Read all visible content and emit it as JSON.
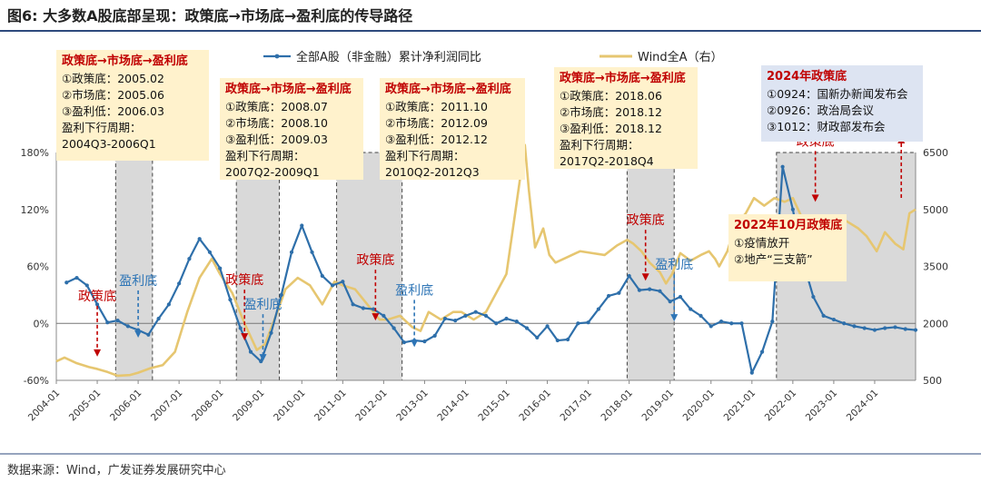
{
  "figure_title": "图6:  大多数A股底部呈现：政策底→市场底→盈利底的传导路径",
  "source": "数据来源：Wind，广发证券发展研究中心",
  "colors": {
    "earnings_line": "#2E6FAA",
    "index_line": "#E6C670",
    "policy": "#C00000",
    "earnings_marker": "#2E75B6",
    "shade": "#D9D9D9",
    "box": "#FFF2CC",
    "box_2024": "#DDE4F2"
  },
  "chart_data": {
    "type": "line",
    "legend": [
      "全部A股（非金融）累计净利润同比",
      "Wind全A（右）"
    ],
    "x_ticks": [
      "2004-01",
      "2005-01",
      "2006-01",
      "2007-01",
      "2008-01",
      "2009-01",
      "2010-01",
      "2011-01",
      "2012-01",
      "2013-01",
      "2014-01",
      "2015-01",
      "2016-01",
      "2017-01",
      "2018-01",
      "2019-01",
      "2020-01",
      "2021-01",
      "2022-01",
      "2023-01",
      "2024-01"
    ],
    "y_left": {
      "ticks": [
        "-60%",
        "0%",
        "60%",
        "120%",
        "180%"
      ],
      "values": [
        -60,
        0,
        60,
        120,
        180
      ],
      "range": [
        -60,
        180
      ]
    },
    "y_right": {
      "ticks": [
        "500",
        "2000",
        "3500",
        "5000",
        "6500"
      ],
      "values": [
        500,
        2000,
        3500,
        5000,
        6500
      ],
      "range": [
        500,
        6500
      ]
    },
    "series": [
      {
        "name": "全部A股（非金融）累计净利润同比",
        "axis": "left",
        "data": [
          [
            2004.25,
            43
          ],
          [
            2004.5,
            48
          ],
          [
            2004.75,
            40
          ],
          [
            2005.0,
            20
          ],
          [
            2005.25,
            1
          ],
          [
            2005.5,
            3
          ],
          [
            2005.75,
            -3
          ],
          [
            2006.0,
            -7
          ],
          [
            2006.25,
            -12
          ],
          [
            2006.5,
            5
          ],
          [
            2006.75,
            20
          ],
          [
            2007.0,
            42
          ],
          [
            2007.25,
            68
          ],
          [
            2007.5,
            89
          ],
          [
            2007.75,
            75
          ],
          [
            2008.0,
            58
          ],
          [
            2008.25,
            25
          ],
          [
            2008.5,
            -5
          ],
          [
            2008.75,
            -30
          ],
          [
            2009.0,
            -40
          ],
          [
            2009.25,
            -10
          ],
          [
            2009.5,
            30
          ],
          [
            2009.75,
            75
          ],
          [
            2010.0,
            103
          ],
          [
            2010.25,
            75
          ],
          [
            2010.5,
            50
          ],
          [
            2010.75,
            40
          ],
          [
            2011.0,
            44
          ],
          [
            2011.25,
            20
          ],
          [
            2011.5,
            16
          ],
          [
            2011.75,
            15
          ],
          [
            2012.0,
            8
          ],
          [
            2012.25,
            -5
          ],
          [
            2012.5,
            -20
          ],
          [
            2012.75,
            -18
          ],
          [
            2013.0,
            -19
          ],
          [
            2013.25,
            -13
          ],
          [
            2013.5,
            5
          ],
          [
            2013.75,
            3
          ],
          [
            2014.0,
            8
          ],
          [
            2014.25,
            12
          ],
          [
            2014.5,
            8
          ],
          [
            2014.75,
            0
          ],
          [
            2015.0,
            5
          ],
          [
            2015.25,
            2
          ],
          [
            2015.5,
            -5
          ],
          [
            2015.75,
            -15
          ],
          [
            2016.0,
            -3
          ],
          [
            2016.25,
            -18
          ],
          [
            2016.5,
            -17
          ],
          [
            2016.75,
            0
          ],
          [
            2017.0,
            1
          ],
          [
            2017.25,
            15
          ],
          [
            2017.5,
            29
          ],
          [
            2017.75,
            32
          ],
          [
            2018.0,
            50
          ],
          [
            2018.25,
            35
          ],
          [
            2018.5,
            36
          ],
          [
            2018.75,
            34
          ],
          [
            2019.0,
            23
          ],
          [
            2019.25,
            28
          ],
          [
            2019.5,
            15
          ],
          [
            2019.75,
            8
          ],
          [
            2020.0,
            -3
          ],
          [
            2020.25,
            2
          ],
          [
            2020.5,
            0
          ],
          [
            2020.75,
            0
          ],
          [
            2021.0,
            -52
          ],
          [
            2021.25,
            -30
          ],
          [
            2021.5,
            2
          ],
          [
            2021.75,
            165
          ],
          [
            2022.0,
            120
          ],
          [
            2022.25,
            65
          ],
          [
            2022.5,
            28
          ],
          [
            2022.75,
            8
          ],
          [
            2023.0,
            4
          ],
          [
            2023.25,
            0
          ],
          [
            2023.5,
            -3
          ],
          [
            2023.75,
            -5
          ],
          [
            2024.0,
            -7
          ],
          [
            2024.25,
            -5
          ],
          [
            2024.5,
            -4
          ],
          [
            2024.75,
            -6
          ],
          [
            2025.0,
            -7
          ]
        ]
      },
      {
        "name": "Wind全A（右）",
        "axis": "right",
        "data": [
          [
            2004.0,
            1000
          ],
          [
            2004.2,
            1100
          ],
          [
            2004.5,
            950
          ],
          [
            2004.8,
            850
          ],
          [
            2005.0,
            800
          ],
          [
            2005.25,
            720
          ],
          [
            2005.5,
            620
          ],
          [
            2005.8,
            640
          ],
          [
            2006.0,
            700
          ],
          [
            2006.3,
            820
          ],
          [
            2006.6,
            900
          ],
          [
            2006.9,
            1250
          ],
          [
            2007.2,
            2300
          ],
          [
            2007.5,
            3200
          ],
          [
            2007.8,
            3700
          ],
          [
            2008.0,
            3300
          ],
          [
            2008.3,
            2800
          ],
          [
            2008.6,
            2000
          ],
          [
            2008.9,
            1300
          ],
          [
            2009.1,
            1450
          ],
          [
            2009.4,
            2300
          ],
          [
            2009.6,
            2900
          ],
          [
            2009.9,
            3200
          ],
          [
            2010.2,
            3000
          ],
          [
            2010.5,
            2500
          ],
          [
            2010.8,
            3100
          ],
          [
            2011.0,
            3000
          ],
          [
            2011.3,
            2900
          ],
          [
            2011.6,
            2500
          ],
          [
            2011.9,
            2100
          ],
          [
            2012.1,
            2100
          ],
          [
            2012.4,
            2200
          ],
          [
            2012.7,
            1900
          ],
          [
            2012.9,
            1800
          ],
          [
            2013.1,
            2300
          ],
          [
            2013.4,
            2100
          ],
          [
            2013.7,
            2300
          ],
          [
            2013.9,
            2300
          ],
          [
            2014.2,
            2100
          ],
          [
            2014.5,
            2300
          ],
          [
            2014.8,
            2900
          ],
          [
            2015.0,
            3300
          ],
          [
            2015.2,
            4800
          ],
          [
            2015.45,
            6700
          ],
          [
            2015.55,
            5500
          ],
          [
            2015.7,
            4000
          ],
          [
            2015.9,
            4500
          ],
          [
            2016.05,
            3800
          ],
          [
            2016.2,
            3600
          ],
          [
            2016.5,
            3750
          ],
          [
            2016.8,
            3900
          ],
          [
            2017.1,
            3850
          ],
          [
            2017.4,
            3800
          ],
          [
            2017.7,
            4050
          ],
          [
            2017.95,
            4200
          ],
          [
            2018.1,
            4100
          ],
          [
            2018.3,
            3900
          ],
          [
            2018.5,
            3600
          ],
          [
            2018.75,
            3350
          ],
          [
            2018.9,
            3050
          ],
          [
            2019.05,
            3300
          ],
          [
            2019.25,
            3850
          ],
          [
            2019.5,
            3650
          ],
          [
            2019.75,
            3800
          ],
          [
            2019.95,
            3900
          ],
          [
            2020.1,
            3700
          ],
          [
            2020.2,
            3500
          ],
          [
            2020.4,
            3900
          ],
          [
            2020.6,
            4600
          ],
          [
            2020.85,
            4900
          ],
          [
            2021.05,
            5300
          ],
          [
            2021.3,
            5100
          ],
          [
            2021.55,
            5300
          ],
          [
            2021.8,
            5200
          ],
          [
            2022.0,
            5300
          ],
          [
            2022.3,
            4600
          ],
          [
            2022.55,
            4800
          ],
          [
            2022.8,
            4300
          ],
          [
            2023.0,
            4800
          ],
          [
            2023.3,
            4700
          ],
          [
            2023.6,
            4500
          ],
          [
            2023.8,
            4300
          ],
          [
            2024.05,
            3900
          ],
          [
            2024.25,
            4400
          ],
          [
            2024.5,
            4100
          ],
          [
            2024.7,
            3950
          ],
          [
            2024.85,
            4900
          ],
          [
            2025.0,
            5000
          ]
        ]
      }
    ],
    "shaded_periods": [
      [
        2005.45,
        2006.35
      ],
      [
        2008.4,
        2009.45
      ],
      [
        2010.85,
        2012.45
      ],
      [
        2017.95,
        2019.1
      ],
      [
        2021.6,
        2025.0
      ]
    ],
    "policy_markers": [
      {
        "label": "政策底",
        "x": 2005.0,
        "y": -35
      },
      {
        "label": "政策底",
        "x": 2008.6,
        "y": -18
      },
      {
        "label": "政策底",
        "x": 2011.8,
        "y": 3
      },
      {
        "label": "政策底",
        "x": 2018.4,
        "y": 45
      },
      {
        "label": "政策底",
        "x": 2022.55,
        "y": 128
      }
    ],
    "earnings_markers": [
      {
        "label": "盈利底",
        "x": 2006.0,
        "y": -15
      },
      {
        "label": "盈利底",
        "x": 2009.05,
        "y": -40
      },
      {
        "label": "盈利底",
        "x": 2012.75,
        "y": -25
      },
      {
        "label": "盈利底",
        "x": 2019.1,
        "y": 2
      }
    ],
    "annotations": [
      {
        "title": "政策底→市场底→盈利底",
        "lines": [
          "①政策底：2005.02",
          "②市场底：2005.06",
          "③盈利低：2006.03",
          "盈利下行周期：",
          "2004Q3-2006Q1"
        ]
      },
      {
        "title": "政策底→市场底→盈利底",
        "lines": [
          "①政策底：2008.07",
          "②市场底：2008.10",
          "③盈利低：2009.03",
          "盈利下行周期：",
          "2007Q2-2009Q1"
        ]
      },
      {
        "title": "政策底→市场底→盈利底",
        "lines": [
          "①政策底：2011.10",
          "②市场底：2012.09",
          "③盈利低：2012.12",
          "盈利下行周期：",
          "2010Q2-2012Q3"
        ]
      },
      {
        "title": "政策底→市场底→盈利底",
        "lines": [
          "①政策底：2018.06",
          "②市场底：2018.12",
          "③盈利低：2018.12",
          "盈利下行周期：",
          "2017Q2-2018Q4"
        ]
      },
      {
        "title": "2024年政策底",
        "lines": [
          "①0924：国新办新闻发布会",
          "②0926：政治局会议",
          "③1012：财政部发布会"
        ]
      },
      {
        "title": "2022年10月政策底",
        "lines": [
          "①疫情放开",
          "②地产“三支箭”"
        ]
      }
    ]
  }
}
